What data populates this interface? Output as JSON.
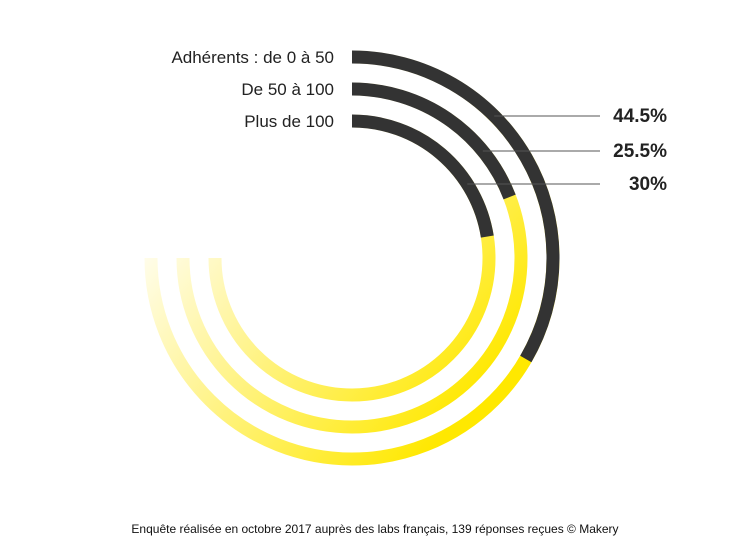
{
  "chart_data": {
    "type": "radial-bar",
    "series": [
      {
        "name": "Adhérents : de 0 à 50",
        "value": 44.5,
        "value_label": "44.5%"
      },
      {
        "name": "De 50 à 100",
        "value": 25.5,
        "value_label": "25.5%"
      },
      {
        "name": "Plus de 100",
        "value": 30,
        "value_label": "30%"
      }
    ],
    "max": 100,
    "unit": "%",
    "legend_placement": "left of ring starts"
  },
  "colors": {
    "value_arc": "#333333",
    "track_light": "#fffce0",
    "track_bright": "#ffe800",
    "leader": "#555555"
  },
  "footnote": "Enquête réalisée en octobre 2017 auprès des labs français, 139 réponses reçues © Makery"
}
